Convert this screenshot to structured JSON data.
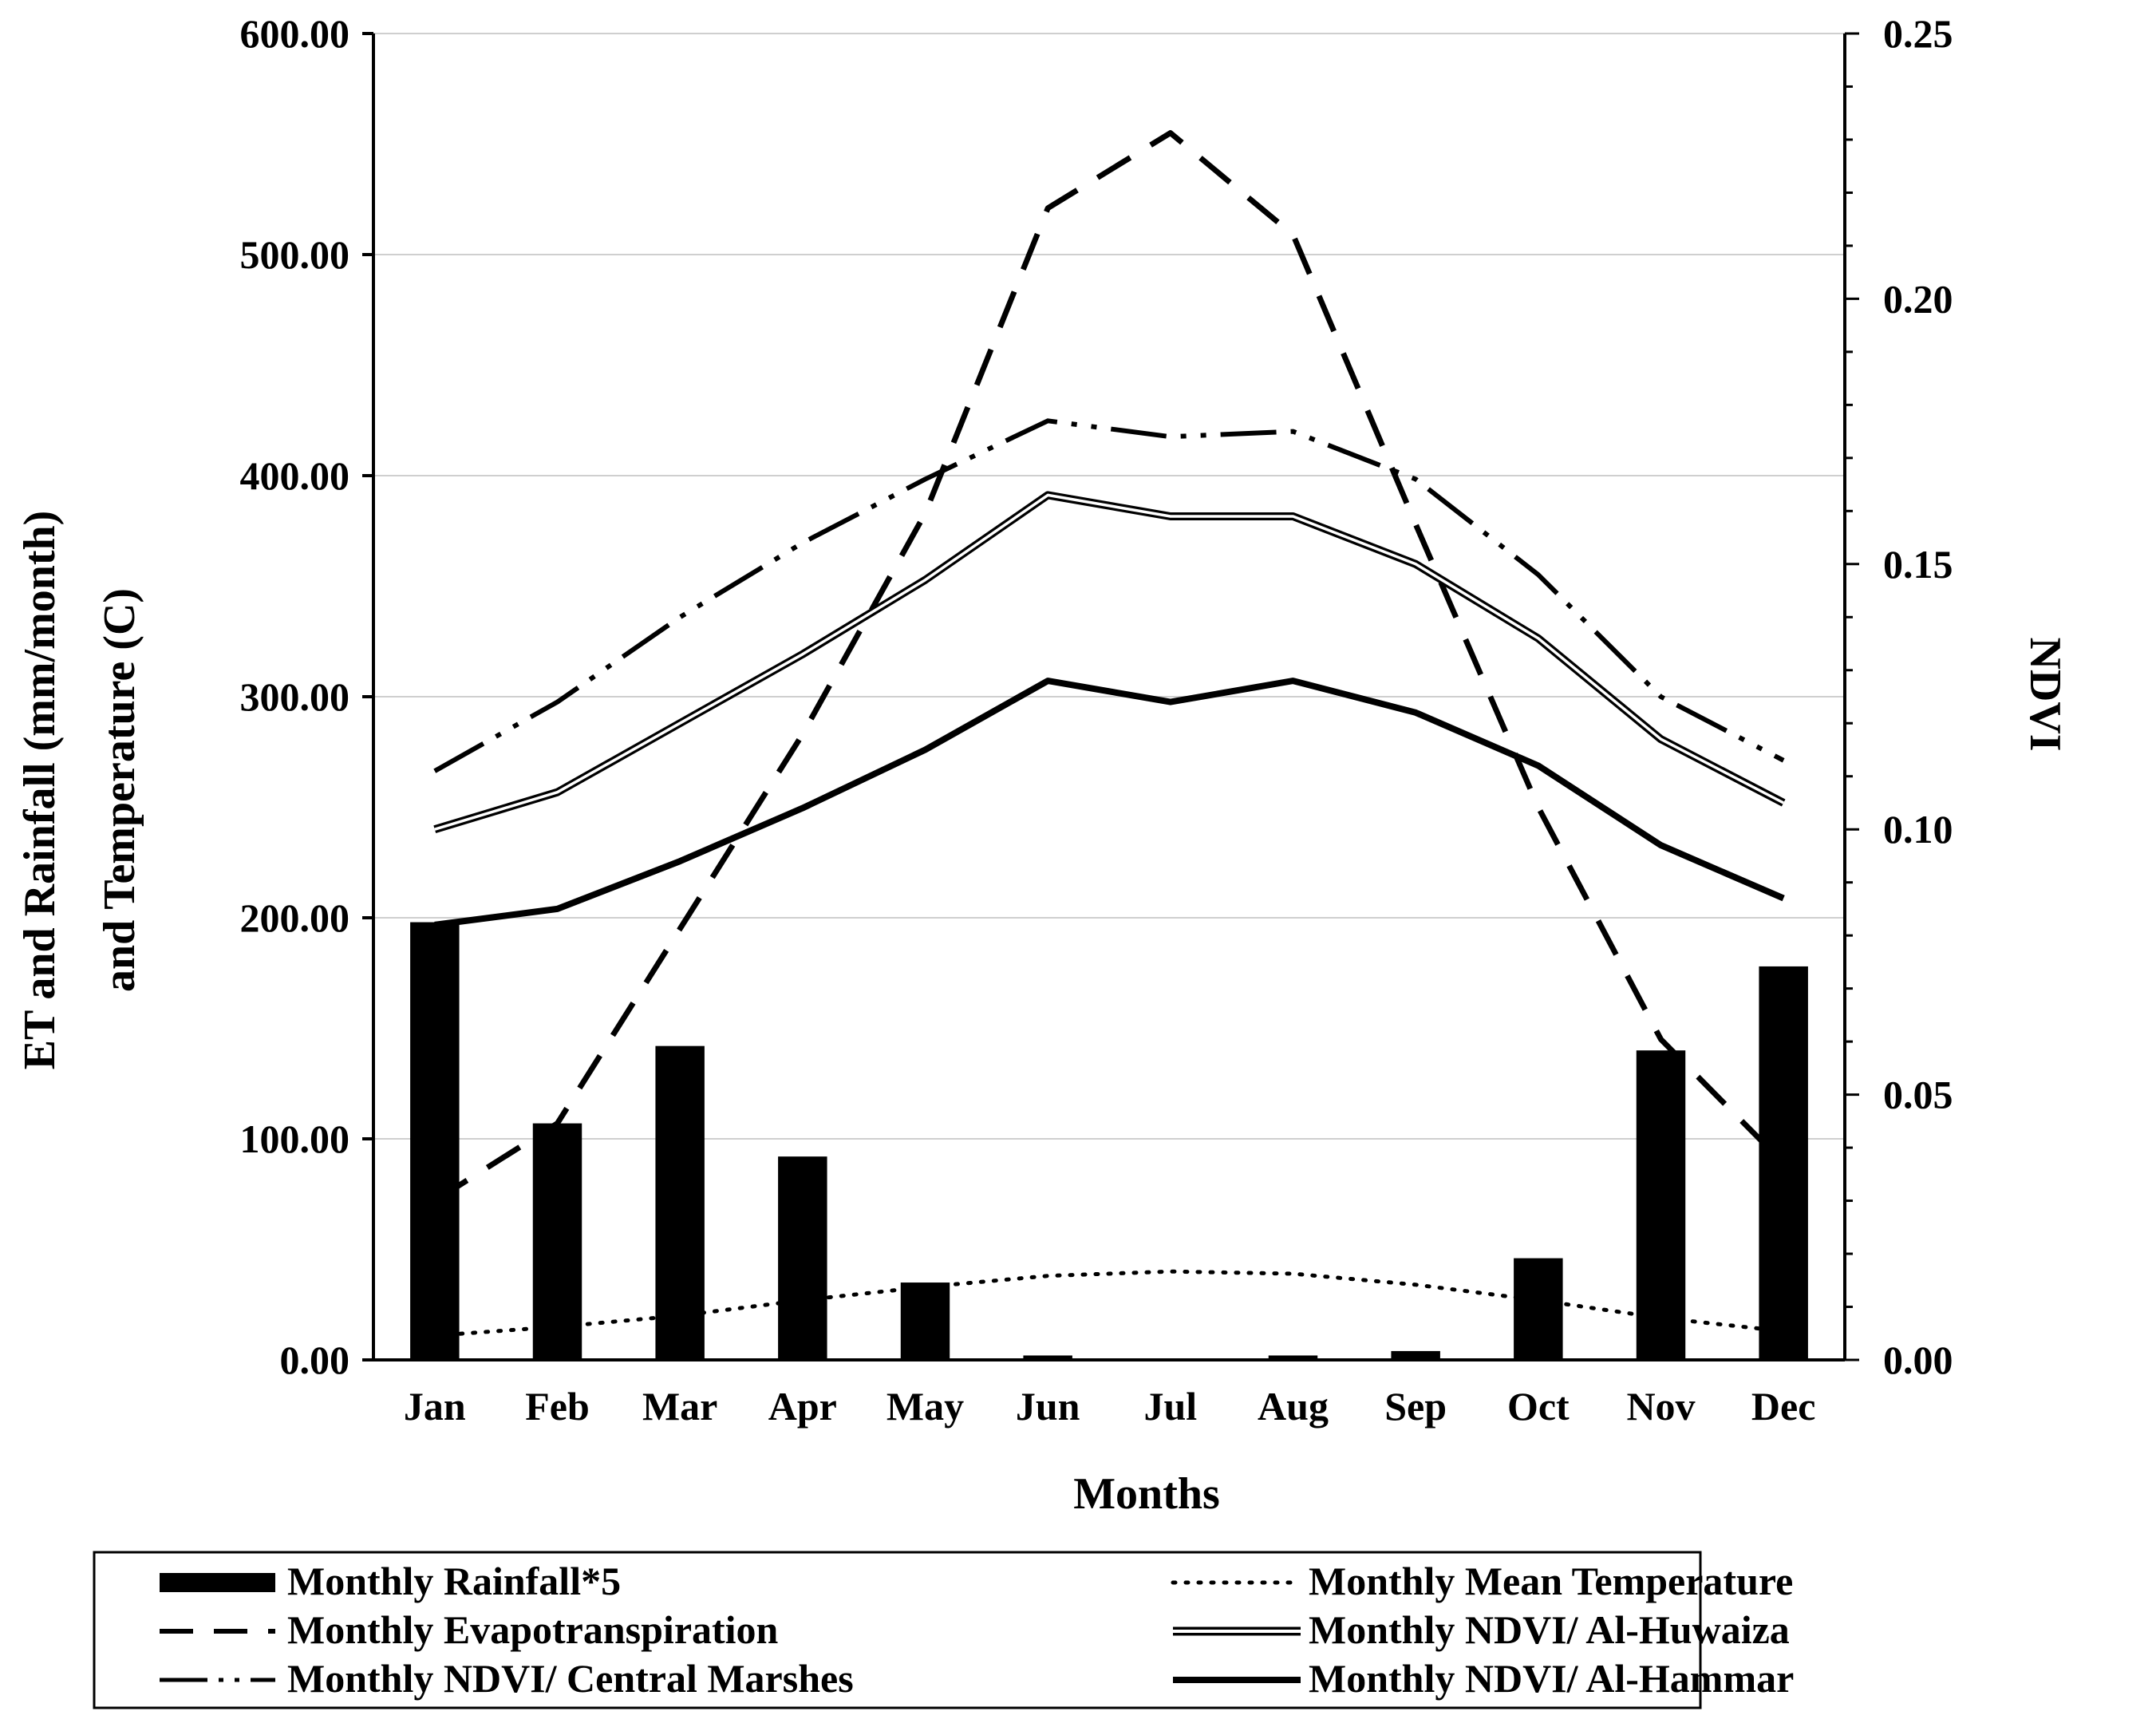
{
  "chart_data": {
    "type": "bar+line",
    "title": "",
    "categories": [
      "Jan",
      "Feb",
      "Mar",
      "Apr",
      "May",
      "Jun",
      "Jul",
      "Aug",
      "Sep",
      "Oct",
      "Nov",
      "Dec"
    ],
    "xlabel": "Months",
    "ylabel_left_line1": "ET and Rainfall (mm/month)",
    "ylabel_left_line2": "and Temperature (C)",
    "ylabel_right": "NDVI",
    "ylim_left": [
      0,
      600
    ],
    "ylim_right": [
      0,
      0.25
    ],
    "yticks_left": [
      "0.00",
      "100.00",
      "200.00",
      "300.00",
      "400.00",
      "500.00",
      "600.00"
    ],
    "yticks_right": [
      "0.00",
      "0.05",
      "0.10",
      "0.15",
      "0.20",
      "0.25"
    ],
    "grid": true,
    "legend_position": "bottom",
    "series": [
      {
        "name": "Monthly Rainfall*5",
        "kind": "bar",
        "axis": "left",
        "values": [
          198,
          107,
          142,
          92,
          35,
          2,
          0,
          2,
          4,
          46,
          140,
          178
        ]
      },
      {
        "name": "Monthly Mean Temperature",
        "kind": "line",
        "style": "dotted",
        "axis": "left",
        "values": [
          11,
          15,
          20,
          27,
          33,
          38,
          40,
          39,
          34,
          27,
          19,
          13
        ]
      },
      {
        "name": "Monthly Evapotranspiration",
        "kind": "line",
        "style": "dashed",
        "axis": "left",
        "values": [
          72,
          107,
          195,
          283,
          383,
          521,
          555,
          509,
          378,
          250,
          145,
          89
        ]
      },
      {
        "name": "Monthly NDVI/  Al-Huwaiza",
        "kind": "line",
        "style": "double",
        "axis": "right",
        "values": [
          0.1,
          0.107,
          0.12,
          0.133,
          0.147,
          0.163,
          0.159,
          0.159,
          0.15,
          0.136,
          0.117,
          0.105
        ]
      },
      {
        "name": "Monthly NDVI/ Central Marshes",
        "kind": "line",
        "style": "dashdotdot",
        "axis": "right",
        "values": [
          0.111,
          0.124,
          0.14,
          0.154,
          0.166,
          0.177,
          0.174,
          0.175,
          0.166,
          0.148,
          0.125,
          0.113
        ]
      },
      {
        "name": "Monthly NDVI/ Al-Hammar",
        "kind": "line",
        "style": "solid",
        "axis": "right",
        "values": [
          0.082,
          0.085,
          0.094,
          0.104,
          0.115,
          0.128,
          0.124,
          0.128,
          0.122,
          0.112,
          0.097,
          0.087
        ]
      }
    ]
  },
  "legend": {
    "items": [
      {
        "label": "Monthly Rainfall*5"
      },
      {
        "label": "Monthly Mean Temperature"
      },
      {
        "label": "Monthly Evapotranspiration"
      },
      {
        "label": "Monthly NDVI/  Al-Huwaiza"
      },
      {
        "label": "Monthly NDVI/ Central Marshes"
      },
      {
        "label": "Monthly NDVI/ Al-Hammar"
      }
    ]
  }
}
